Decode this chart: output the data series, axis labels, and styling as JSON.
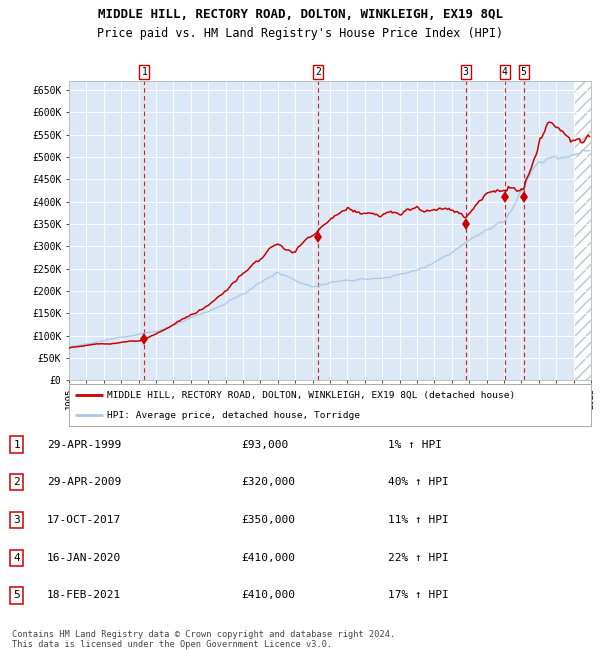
{
  "title": "MIDDLE HILL, RECTORY ROAD, DOLTON, WINKLEIGH, EX19 8QL",
  "subtitle": "Price paid vs. HM Land Registry's House Price Index (HPI)",
  "title_fontsize": 9,
  "subtitle_fontsize": 8.5,
  "ylim": [
    0,
    670000
  ],
  "yticks": [
    0,
    50000,
    100000,
    150000,
    200000,
    250000,
    300000,
    350000,
    400000,
    450000,
    500000,
    550000,
    600000,
    650000
  ],
  "ytick_labels": [
    "£0",
    "£50K",
    "£100K",
    "£150K",
    "£200K",
    "£250K",
    "£300K",
    "£350K",
    "£400K",
    "£450K",
    "£500K",
    "£550K",
    "£600K",
    "£650K"
  ],
  "hpi_color": "#aac8e8",
  "price_color": "#cc0000",
  "bg_color": "#dce8f5",
  "legend_label_red": "MIDDLE HILL, RECTORY ROAD, DOLTON, WINKLEIGH, EX19 8QL (detached house)",
  "legend_label_blue": "HPI: Average price, detached house, Torridge",
  "sale_events": [
    {
      "num": 1,
      "date": "29-APR-1999",
      "price": 93000,
      "year": 1999.33
    },
    {
      "num": 2,
      "date": "29-APR-2009",
      "price": 320000,
      "year": 2009.33
    },
    {
      "num": 3,
      "date": "17-OCT-2017",
      "price": 350000,
      "year": 2017.8
    },
    {
      "num": 4,
      "date": "16-JAN-2020",
      "price": 410000,
      "year": 2020.05
    },
    {
      "num": 5,
      "date": "18-FEB-2021",
      "price": 410000,
      "year": 2021.13
    }
  ],
  "table_rows": [
    {
      "num": 1,
      "date": "29-APR-1999",
      "price": "£93,000",
      "pct": "1% ↑ HPI"
    },
    {
      "num": 2,
      "date": "29-APR-2009",
      "price": "£320,000",
      "pct": "40% ↑ HPI"
    },
    {
      "num": 3,
      "date": "17-OCT-2017",
      "price": "£350,000",
      "pct": "11% ↑ HPI"
    },
    {
      "num": 4,
      "date": "16-JAN-2020",
      "price": "£410,000",
      "pct": "22% ↑ HPI"
    },
    {
      "num": 5,
      "date": "18-FEB-2021",
      "price": "£410,000",
      "pct": "17% ↑ HPI"
    }
  ],
  "footer": "Contains HM Land Registry data © Crown copyright and database right 2024.\nThis data is licensed under the Open Government Licence v3.0.",
  "xmin": 1995,
  "xmax": 2025
}
